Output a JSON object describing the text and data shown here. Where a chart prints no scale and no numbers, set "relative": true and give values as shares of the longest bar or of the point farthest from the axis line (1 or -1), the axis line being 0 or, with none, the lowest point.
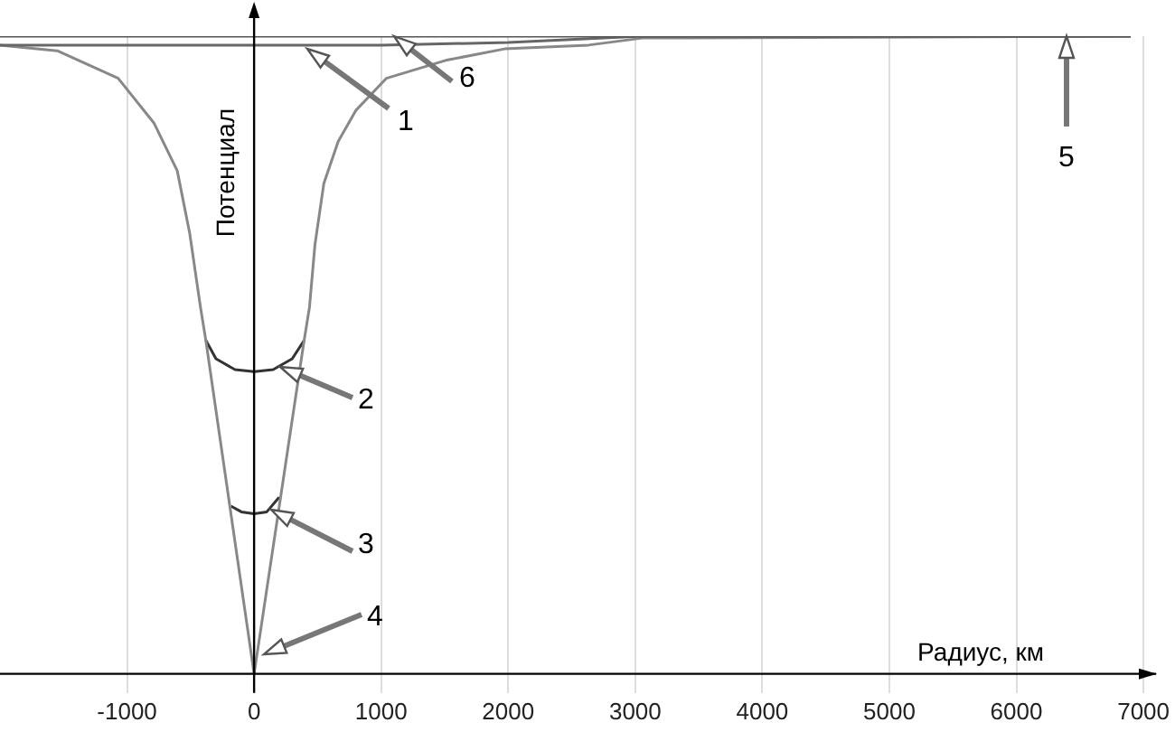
{
  "chart_data": {
    "type": "line",
    "relative": true,
    "xlabel": "Радиус, км",
    "ylabel": "Потенциал",
    "xlim": [
      -2000,
      7100
    ],
    "xticks": [
      -1000,
      0,
      1000,
      2000,
      3000,
      4000,
      5000,
      6000,
      7000
    ],
    "grid": "x",
    "legend": false,
    "marker": "none",
    "line_style": "solid",
    "series": [
      {
        "color": "#555555",
        "x": [
          -2000,
          6900
        ],
        "values": [
          1,
          1
        ]
      },
      {
        "color": "#666666",
        "x": [
          -2000,
          0,
          1000,
          2000,
          3055,
          6900
        ],
        "values": [
          0.986,
          0.986,
          0.986,
          0.99,
          1,
          1
        ]
      },
      {
        "color": "#888888",
        "x": [
          -2000,
          -1549,
          -1070,
          -789,
          -605,
          -507,
          -422,
          -380,
          0,
          394,
          436,
          479,
          549,
          662,
          803,
          1042,
          1507,
          1971,
          2633,
          3055,
          6900
        ],
        "values": [
          0.986,
          0.977,
          0.934,
          0.864,
          0.789,
          0.691,
          0.575,
          0.523,
          0,
          0.523,
          0.575,
          0.673,
          0.769,
          0.835,
          0.884,
          0.934,
          0.962,
          0.98,
          0.986,
          0.997,
          1
        ]
      },
      {
        "color": "#333333",
        "x": [
          -380,
          -300,
          -150,
          0,
          150,
          300,
          394
        ],
        "values": [
          0.523,
          0.494,
          0.477,
          0.474,
          0.477,
          0.494,
          0.523
        ]
      },
      {
        "color": "#333333",
        "x": [
          -183,
          -100,
          0,
          100,
          197
        ],
        "values": [
          0.263,
          0.254,
          0.251,
          0.254,
          0.277
        ]
      }
    ],
    "annotations": [
      "1",
      "6",
      "2",
      "3",
      "4",
      "5"
    ]
  }
}
